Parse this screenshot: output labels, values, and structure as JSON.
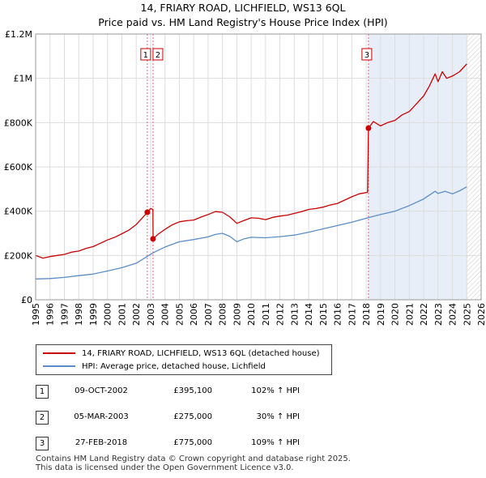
{
  "title": "14, FRIARY ROAD, LICHFIELD, WS13 6QL",
  "subtitle": "Price paid vs. HM Land Registry's House Price Index (HPI)",
  "colors": {
    "property": "#cc0000",
    "hpi": "#5b8dc9",
    "shade": "#e8eef8",
    "grid": "#dddddd"
  },
  "legend": {
    "property_label": "14, FRIARY ROAD, LICHFIELD, WS13 6QL (detached house)",
    "hpi_label": "HPI: Average price, detached house, Lichfield"
  },
  "sales": [
    {
      "num": "1",
      "date": "09-OCT-2002",
      "price": "£395,100",
      "hpi_change": "102% ↑ HPI"
    },
    {
      "num": "2",
      "date": "05-MAR-2003",
      "price": "£275,000",
      "hpi_change": "30% ↑ HPI"
    },
    {
      "num": "3",
      "date": "27-FEB-2018",
      "price": "£775,000",
      "hpi_change": "109% ↑ HPI"
    }
  ],
  "footer": {
    "line1": "Contains HM Land Registry data © Crown copyright and database right 2025.",
    "line2": "This data is licensed under the Open Government Licence v3.0."
  },
  "chart_data": {
    "type": "line",
    "title": "14, FRIARY ROAD, LICHFIELD, WS13 6QL",
    "subtitle": "Price paid vs. HM Land Registry's House Price Index (HPI)",
    "xlabel": "",
    "ylabel": "",
    "xlim": [
      1995,
      2026
    ],
    "ylim": [
      0,
      1200000
    ],
    "x_ticks": [
      1995,
      1996,
      1997,
      1998,
      1999,
      2000,
      2001,
      2002,
      2003,
      2004,
      2005,
      2006,
      2007,
      2008,
      2009,
      2010,
      2011,
      2012,
      2013,
      2014,
      2015,
      2016,
      2017,
      2018,
      2019,
      2020,
      2021,
      2022,
      2023,
      2024,
      2025,
      2026
    ],
    "y_ticks": [
      {
        "value": 0,
        "label": "£0"
      },
      {
        "value": 200000,
        "label": "£200K"
      },
      {
        "value": 400000,
        "label": "£400K"
      },
      {
        "value": 600000,
        "label": "£600K"
      },
      {
        "value": 800000,
        "label": "£800K"
      },
      {
        "value": 1000000,
        "label": "£1M"
      },
      {
        "value": 1200000,
        "label": "£1.2M"
      }
    ],
    "grid": true,
    "shaded_range": [
      2018.16,
      2025.0
    ],
    "hatched_range": [
      2025.0,
      2026
    ],
    "markers": [
      {
        "label": "1",
        "x": 2002.77,
        "y": 395100
      },
      {
        "label": "2",
        "x": 2003.17,
        "y": 275000
      },
      {
        "label": "3",
        "x": 2018.16,
        "y": 775000
      }
    ],
    "series": [
      {
        "name": "14, FRIARY ROAD, LICHFIELD, WS13 6QL (detached house)",
        "x": [
          1995.0,
          1995.5,
          1996.0,
          1996.5,
          1997.0,
          1997.5,
          1998.0,
          1998.5,
          1999.0,
          1999.5,
          2000.0,
          2000.5,
          2001.0,
          2001.5,
          2002.0,
          2002.4,
          2002.77,
          2003.0,
          2003.16,
          2003.17,
          2003.5,
          2004.0,
          2004.5,
          2005.0,
          2005.5,
          2006.0,
          2006.5,
          2007.0,
          2007.5,
          2008.0,
          2008.5,
          2009.0,
          2009.5,
          2010.0,
          2010.5,
          2011.0,
          2011.5,
          2012.0,
          2012.5,
          2013.0,
          2013.5,
          2014.0,
          2014.5,
          2015.0,
          2015.5,
          2016.0,
          2016.5,
          2017.0,
          2017.5,
          2018.1,
          2018.16,
          2018.5,
          2019.0,
          2019.5,
          2020.0,
          2020.5,
          2021.0,
          2021.5,
          2022.0,
          2022.4,
          2022.8,
          2023.0,
          2023.3,
          2023.6,
          2024.0,
          2024.5,
          2025.0
        ],
        "values": [
          200000,
          188000,
          195000,
          200000,
          205000,
          215000,
          220000,
          232000,
          240000,
          255000,
          270000,
          282000,
          298000,
          315000,
          340000,
          368000,
          395100,
          412000,
          408000,
          275000,
          295000,
          318000,
          338000,
          352000,
          357000,
          360000,
          373000,
          385000,
          398000,
          395000,
          375000,
          345000,
          358000,
          370000,
          368000,
          362000,
          372000,
          378000,
          382000,
          390000,
          398000,
          408000,
          412000,
          418000,
          428000,
          435000,
          450000,
          465000,
          478000,
          485000,
          775000,
          805000,
          785000,
          800000,
          810000,
          835000,
          850000,
          885000,
          920000,
          965000,
          1020000,
          985000,
          1030000,
          1000000,
          1010000,
          1030000,
          1065000
        ]
      },
      {
        "name": "HPI: Average price, detached house, Lichfield",
        "x": [
          1995.0,
          1996.0,
          1997.0,
          1998.0,
          1999.0,
          2000.0,
          2001.0,
          2002.0,
          2002.77,
          2003.17,
          2004.0,
          2005.0,
          2006.0,
          2007.0,
          2007.5,
          2008.0,
          2008.5,
          2009.0,
          2009.5,
          2010.0,
          2011.0,
          2012.0,
          2013.0,
          2014.0,
          2015.0,
          2016.0,
          2017.0,
          2018.16,
          2019.0,
          2020.0,
          2021.0,
          2022.0,
          2022.8,
          2023.0,
          2023.5,
          2024.0,
          2024.5,
          2025.0
        ],
        "values": [
          94000,
          96000,
          101000,
          109000,
          116000,
          130000,
          145000,
          165000,
          196000,
          212000,
          238000,
          262000,
          272000,
          284000,
          295000,
          300000,
          287000,
          262000,
          275000,
          282000,
          280000,
          285000,
          292000,
          305000,
          320000,
          335000,
          350000,
          371000,
          385000,
          400000,
          425000,
          455000,
          490000,
          480000,
          490000,
          478000,
          492000,
          510000
        ]
      }
    ]
  }
}
